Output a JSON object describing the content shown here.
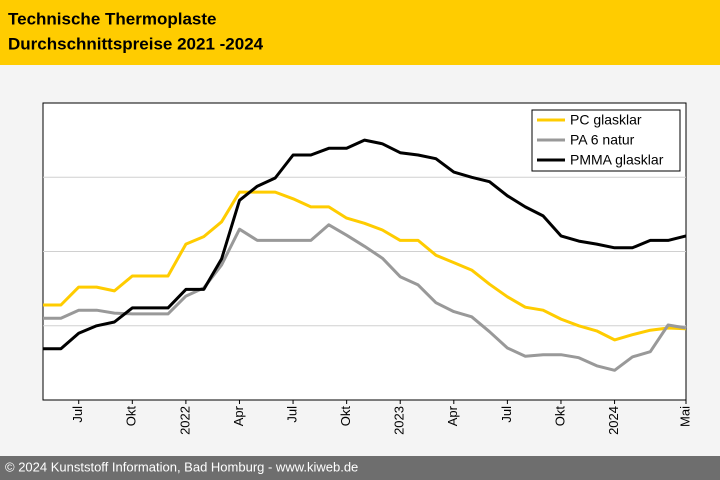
{
  "chart_data": {
    "type": "line",
    "title": [
      "Technische Thermoplaste",
      "Durchschnittspreise 2021 -2024"
    ],
    "footer": "© 2024 Kunststoff Information, Bad Homburg - www.kiweb.de",
    "categories": [
      null,
      null,
      "Jul",
      null,
      null,
      "Okt",
      null,
      null,
      "2022",
      null,
      null,
      "Apr",
      null,
      null,
      "Jul",
      null,
      null,
      "Okt",
      null,
      null,
      "2023",
      null,
      null,
      "Apr",
      null,
      null,
      "Jul",
      null,
      null,
      "Okt",
      null,
      null,
      "2024",
      null,
      null,
      null,
      "Mai"
    ],
    "ylim": [
      0,
      4
    ],
    "yticks": [
      1,
      2,
      3
    ],
    "grid": true,
    "legend": "top-right",
    "series": [
      {
        "name": "PC glasklar",
        "color": "#ffcc00",
        "values": [
          1.28,
          1.28,
          1.52,
          1.52,
          1.47,
          1.67,
          1.67,
          1.67,
          2.1,
          2.2,
          2.4,
          2.8,
          2.8,
          2.8,
          2.71,
          2.6,
          2.6,
          2.45,
          2.38,
          2.29,
          2.15,
          2.15,
          1.95,
          1.85,
          1.75,
          1.56,
          1.39,
          1.25,
          1.21,
          1.09,
          1.0,
          0.93,
          0.81,
          0.88,
          0.94,
          0.97,
          0.96
        ]
      },
      {
        "name": "PA 6 natur",
        "color": "#999999",
        "values": [
          1.1,
          1.1,
          1.21,
          1.21,
          1.17,
          1.16,
          1.16,
          1.16,
          1.4,
          1.51,
          1.82,
          2.3,
          2.15,
          2.15,
          2.15,
          2.15,
          2.36,
          2.22,
          2.07,
          1.91,
          1.66,
          1.55,
          1.31,
          1.19,
          1.12,
          0.92,
          0.7,
          0.59,
          0.61,
          0.61,
          0.57,
          0.46,
          0.4,
          0.58,
          0.65,
          1.01,
          0.97
        ]
      },
      {
        "name": "PMMA glasklar",
        "color": "#000000",
        "values": [
          0.69,
          0.69,
          0.9,
          1.0,
          1.05,
          1.24,
          1.24,
          1.24,
          1.49,
          1.49,
          1.9,
          2.69,
          2.88,
          2.99,
          3.3,
          3.3,
          3.39,
          3.39,
          3.5,
          3.45,
          3.33,
          3.3,
          3.25,
          3.07,
          3.0,
          2.94,
          2.75,
          2.6,
          2.48,
          2.21,
          2.14,
          2.1,
          2.05,
          2.05,
          2.15,
          2.15,
          2.21
        ]
      }
    ]
  }
}
